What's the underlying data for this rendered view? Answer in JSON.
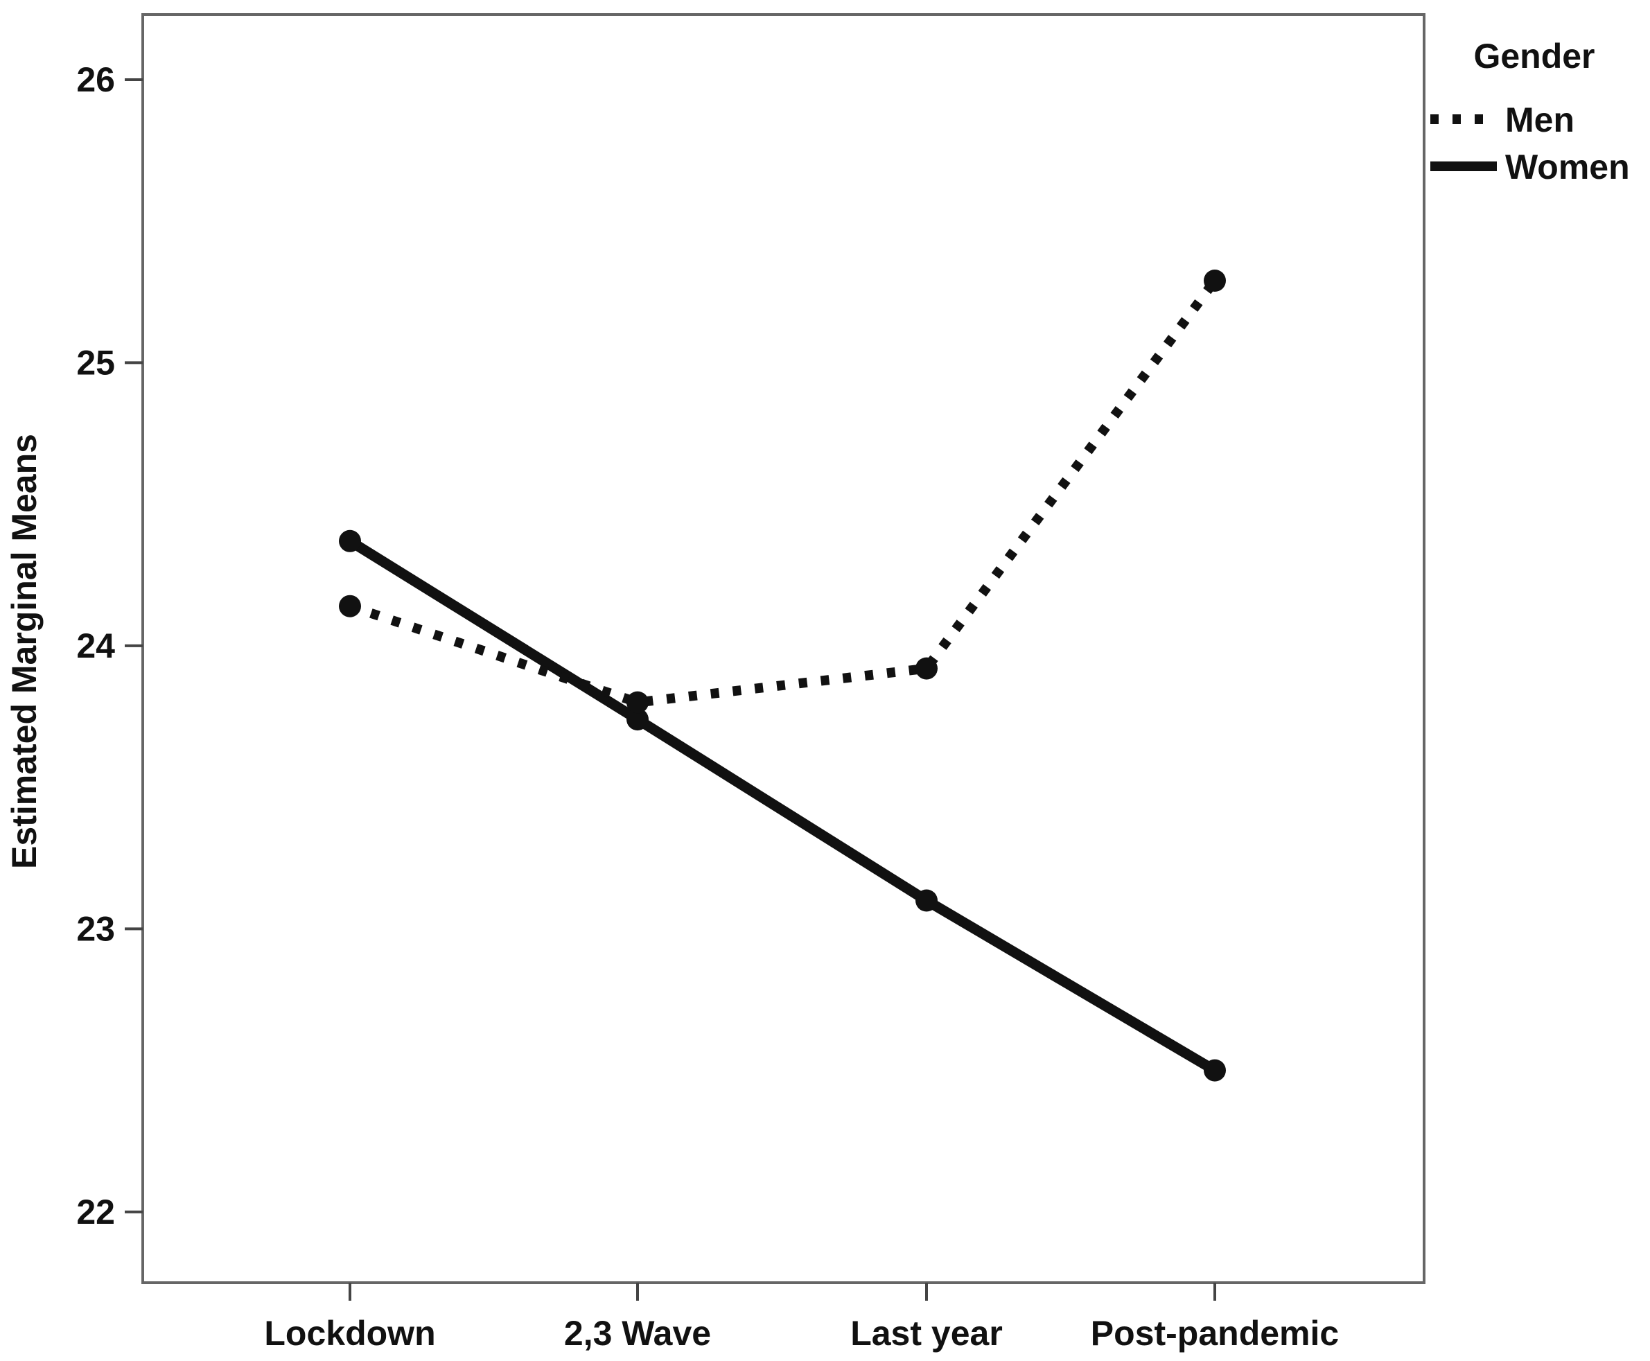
{
  "chart_data": {
    "type": "line",
    "title": "",
    "xlabel": "",
    "ylabel": "Estimated  Marginal Means",
    "categories": [
      "Lockdown",
      "2,3 Wave",
      "Last year",
      "Post-pandemic"
    ],
    "yticks": [
      22,
      23,
      24,
      25,
      26
    ],
    "ytick_labels": [
      "22",
      "23",
      "24",
      "25",
      "26"
    ],
    "ylim": [
      21.75,
      26.23
    ],
    "grid": false,
    "legend": {
      "title": "Gender",
      "position": "top-right, outside plot"
    },
    "series": [
      {
        "name": "Men",
        "line_style": "dotted",
        "color": "#111111",
        "values": [
          24.14,
          23.8,
          23.92,
          25.29
        ]
      },
      {
        "name": "Women",
        "line_style": "solid",
        "color": "#111111",
        "values": [
          24.37,
          23.74,
          23.1,
          22.5
        ]
      }
    ]
  }
}
